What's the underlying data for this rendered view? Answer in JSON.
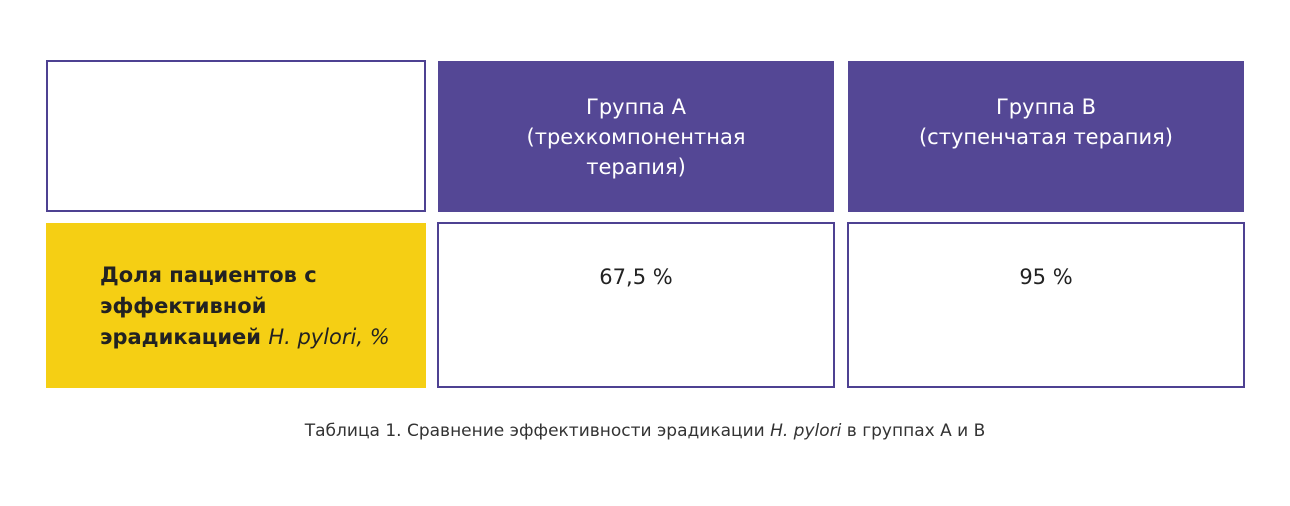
{
  "table": {
    "header": {
      "group_a": [
        "Группа А",
        "(трехкомпонентная",
        "терапия)"
      ],
      "group_b": [
        "Группа В",
        "(ступенчатая терапия)"
      ]
    },
    "row": {
      "label_main": "Доля пациентов с эффективной эрадикацией",
      "label_italic": "H. pylori",
      "label_suffix": ", %",
      "value_a": "67,5 %",
      "value_b": "95 %"
    }
  },
  "caption": {
    "prefix": "Таблица 1. Сравнение эффективности эрадикации",
    "italic": "H. pylori",
    "suffix": "в группах А и В"
  },
  "colors": {
    "header_bg": "#544795",
    "label_bg": "#f5cf14",
    "border": "#4e4192"
  }
}
